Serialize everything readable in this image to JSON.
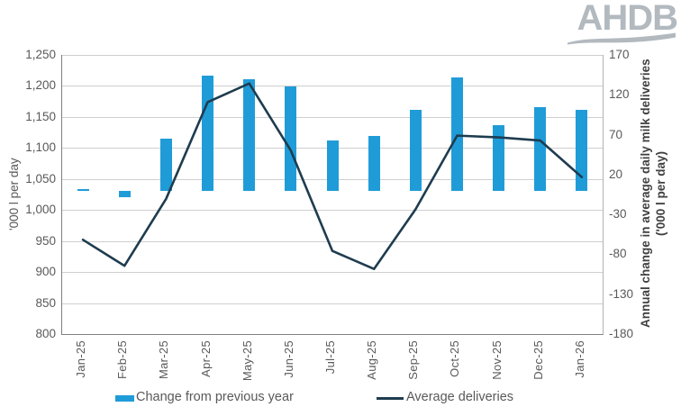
{
  "logo": {
    "text": "AHDB"
  },
  "legend": [
    {
      "label": "Change from previous year",
      "swatch": "bar-swatch",
      "color": "#1f9cd8"
    },
    {
      "label": "Average deliveries",
      "swatch": "line-swatch",
      "color": "#1e3c4f"
    }
  ],
  "chart_data": {
    "type": "bar+line combo, dual axis",
    "categories": [
      "Jan-25",
      "Feb-25",
      "Mar-25",
      "Apr-25",
      "May-25",
      "Jun-25",
      "Jul-25",
      "Aug-25",
      "Sep-25",
      "Oct-25",
      "Nov-25",
      "Dec-25",
      "Jan-26"
    ],
    "series": [
      {
        "name": "Change from previous year",
        "type": "bar",
        "axis": "right",
        "color": "#1f9cd8",
        "values": [
          2,
          -8,
          65,
          144,
          139,
          131,
          63,
          68,
          101,
          142,
          82,
          105,
          101
        ]
      },
      {
        "name": "Average deliveries",
        "type": "line",
        "axis": "left",
        "color": "#1e3c4f",
        "values": [
          952,
          910,
          1018,
          1174,
          1204,
          1096,
          934,
          905,
          1001,
          1120,
          1117,
          1112,
          1053
        ]
      }
    ],
    "left_axis": {
      "title": "'000 l per day",
      "min": 800,
      "max": 1250,
      "step": 50,
      "ticks": [
        "1,250",
        "1,200",
        "1,150",
        "1,100",
        "1,050",
        "1,000",
        "950",
        "900",
        "850",
        "800"
      ]
    },
    "right_axis": {
      "title_line1": "Annual change in average daily milk deliveries",
      "title_line2": "('000 l per day)",
      "min": -180,
      "max": 170,
      "step": 50,
      "ticks": [
        "170",
        "120",
        "70",
        "20",
        "-30",
        "-80",
        "-130",
        "-180"
      ]
    },
    "grid": "horizontal gridlines on (left axis), light gray",
    "legend_position": "bottom"
  }
}
